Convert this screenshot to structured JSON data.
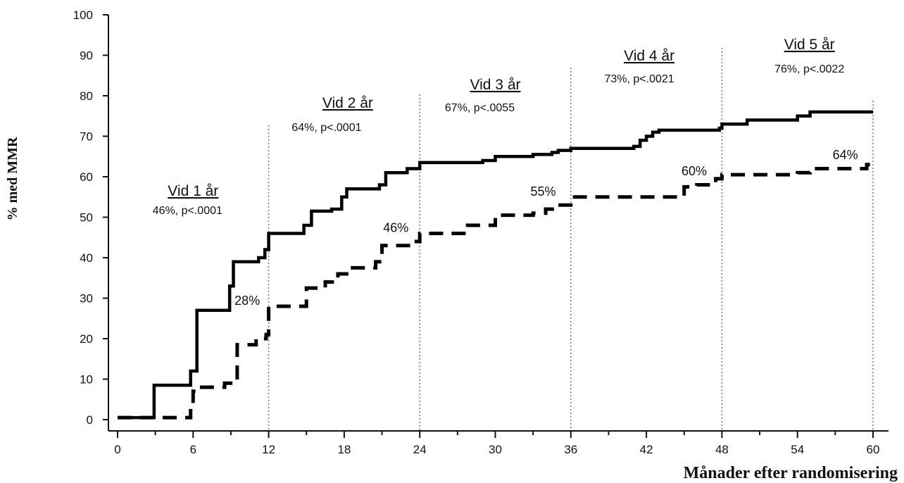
{
  "chart_data": {
    "type": "line",
    "xlabel": "Månader efter randomisering",
    "ylabel": "% med MMR",
    "xlim": [
      0,
      60
    ],
    "ylim": [
      0,
      100
    ],
    "x_ticks": [
      0,
      6,
      12,
      18,
      24,
      30,
      36,
      42,
      48,
      54,
      60
    ],
    "y_ticks": [
      0,
      10,
      20,
      30,
      40,
      50,
      60,
      70,
      80,
      90,
      100
    ],
    "grid": "vertical dotted lines at 12, 24, 36, 48, 60",
    "series": [
      {
        "style": "solid",
        "color": "#000000",
        "x": [
          0,
          2.7,
          2.9,
          5.4,
          5.8,
          6.3,
          6.5,
          8.3,
          8.9,
          9.2,
          11.2,
          11.7,
          12.0,
          14.0,
          14.8,
          15.4,
          17.0,
          17.8,
          18.2,
          20.0,
          20.8,
          21.3,
          23.0,
          23.6,
          24.0,
          29.0,
          30.0,
          33.0,
          34.5,
          35.0,
          36.0,
          41.0,
          41.5,
          42.0,
          42.5,
          43.0,
          47.0,
          47.8,
          48.0,
          49.5,
          50.0,
          53.5,
          54.0,
          55.0,
          60.0
        ],
        "y": [
          0.5,
          0.5,
          8.5,
          8.5,
          12,
          27,
          27,
          27,
          33,
          39,
          40,
          42,
          46,
          46,
          48,
          51.5,
          52,
          55,
          57,
          57,
          58,
          61,
          62,
          62,
          63.5,
          64,
          65,
          65.5,
          66,
          66.5,
          67,
          67.5,
          69,
          70,
          71,
          71.5,
          71.5,
          72,
          73,
          73,
          74,
          74,
          75,
          76,
          76
        ]
      },
      {
        "style": "dashed",
        "color": "#000000",
        "x": [
          0,
          3.5,
          5.0,
          5.8,
          6.0,
          6.5,
          8.5,
          9.5,
          11.0,
          11.8,
          12.0,
          14.5,
          15.0,
          16.5,
          17.5,
          18.5,
          20.5,
          21.0,
          23.5,
          24.0,
          27.0,
          27.8,
          30.0,
          33.0,
          34.0,
          35.0,
          36.0,
          36.3,
          45.0,
          46.0,
          47.5,
          48.0,
          54.0,
          55.0,
          59.5,
          60.0
        ],
        "y": [
          0.5,
          0.5,
          0.5,
          3,
          7,
          8,
          9,
          18.5,
          20,
          21,
          28,
          28,
          32.5,
          34,
          36,
          37.5,
          39,
          43,
          44,
          46,
          46,
          48,
          50.5,
          51,
          52,
          53,
          54,
          55,
          57.5,
          58,
          59.5,
          60.5,
          61,
          62,
          63,
          64
        ]
      }
    ],
    "annotations": {
      "periods": [
        {
          "title": "Vid 1 år",
          "stat": "46%, p<.0001",
          "x": 6
        },
        {
          "title": "Vid 2 år",
          "stat": "64%, p<.0001",
          "x": 18
        },
        {
          "title": "Vid 3 år",
          "stat": "67%, p<.0055",
          "x": 30
        },
        {
          "title": "Vid 4 år",
          "stat": "73%, p<.0021",
          "x": 42
        },
        {
          "title": "Vid 5 år",
          "stat": "76%, p<.0022",
          "x": 54
        }
      ],
      "dashed_labels": [
        {
          "text": "28%",
          "x": 10.3,
          "y": 28
        },
        {
          "text": "46%",
          "x": 22.1,
          "y": 46
        },
        {
          "text": "55%",
          "x": 33.8,
          "y": 55
        },
        {
          "text": "60%",
          "x": 45.8,
          "y": 60
        },
        {
          "text": "64%",
          "x": 57.8,
          "y": 64
        }
      ]
    }
  }
}
